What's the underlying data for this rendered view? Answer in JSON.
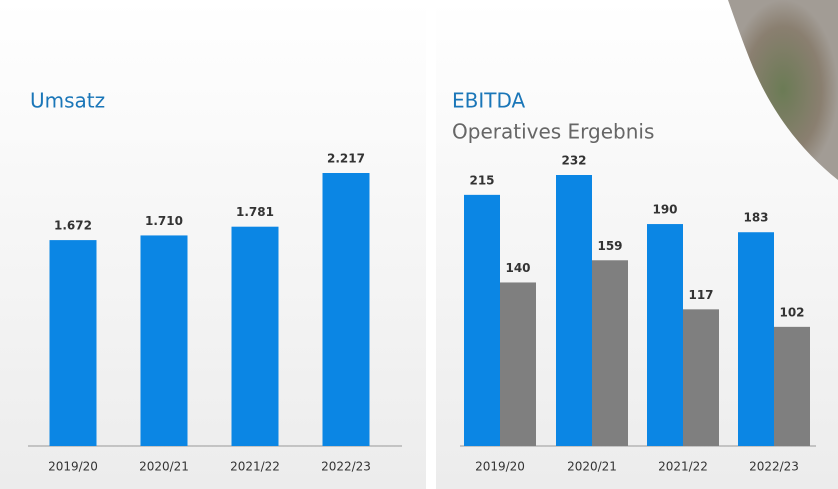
{
  "chart_data": [
    {
      "type": "bar",
      "title": "Umsatz",
      "categories": [
        "2019/20",
        "2020/21",
        "2021/22",
        "2022/23"
      ],
      "values": [
        1672,
        1710,
        1781,
        2217
      ],
      "value_labels": [
        "1.672",
        "1.710",
        "1.781",
        "2.217"
      ],
      "color": "#0b86e4"
    },
    {
      "type": "grouped-bar",
      "categories": [
        "2019/20",
        "2020/21",
        "2021/22",
        "2022/23"
      ],
      "series": [
        {
          "name": "EBITDA",
          "color": "#0b86e4",
          "values": [
            215,
            232,
            190,
            183
          ]
        },
        {
          "name": "Operatives Ergebnis",
          "color": "#7f7f7f",
          "values": [
            140,
            159,
            117,
            102
          ]
        }
      ]
    }
  ]
}
